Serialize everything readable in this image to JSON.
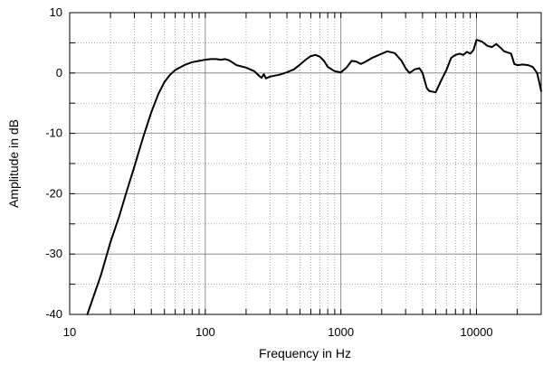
{
  "chart_data": {
    "type": "line",
    "title": "",
    "xlabel": "Frequency in Hz",
    "ylabel": "Amplitude in dB",
    "x_scale": "log",
    "xlim": [
      10,
      30000
    ],
    "ylim": [
      -40,
      10
    ],
    "x_tick_labels": [
      {
        "value": 10,
        "label": "10"
      },
      {
        "value": 100,
        "label": "100"
      },
      {
        "value": 1000,
        "label": "1000"
      },
      {
        "value": 10000,
        "label": "10000"
      }
    ],
    "y_tick_labels": [
      {
        "value": 10,
        "label": "10"
      },
      {
        "value": 0,
        "label": "0"
      },
      {
        "value": -10,
        "label": "-10"
      },
      {
        "value": -20,
        "label": "-20"
      },
      {
        "value": -30,
        "label": "-30"
      },
      {
        "value": -40,
        "label": "-40"
      }
    ],
    "grid": true,
    "legend": "none",
    "line_color": "#000000",
    "series": [
      {
        "x": [
          13.5,
          15,
          17,
          20,
          23,
          26,
          30,
          35,
          40,
          45,
          50,
          55,
          60,
          70,
          80,
          90,
          100,
          110,
          120,
          130,
          140,
          150,
          170,
          200,
          230,
          250,
          260,
          270,
          280,
          300,
          350,
          400,
          450,
          500,
          550,
          600,
          650,
          700,
          750,
          800,
          900,
          1000,
          1100,
          1200,
          1300,
          1400,
          1500,
          1700,
          2000,
          2200,
          2500,
          2800,
          3000,
          3200,
          3500,
          3800,
          4000,
          4300,
          4500,
          5000,
          5500,
          6000,
          6500,
          7000,
          7500,
          8000,
          8500,
          9000,
          9500,
          10000,
          11000,
          12000,
          13000,
          14000,
          15000,
          16000,
          17000,
          18000,
          19000,
          20000,
          22000,
          24000,
          26000,
          28000,
          29000,
          30000
        ],
        "y": [
          -40,
          -37,
          -33.5,
          -28,
          -24,
          -20,
          -15.5,
          -10.5,
          -6.5,
          -3.5,
          -1.5,
          -0.3,
          0.5,
          1.3,
          1.8,
          2.0,
          2.2,
          2.3,
          2.3,
          2.2,
          2.3,
          2.1,
          1.3,
          0.9,
          0.3,
          -0.5,
          -0.8,
          -0.2,
          -0.9,
          -0.6,
          -0.3,
          0.1,
          0.6,
          1.4,
          2.2,
          2.8,
          3.0,
          2.7,
          2.0,
          1.0,
          0.3,
          0.1,
          0.9,
          2.0,
          1.9,
          1.5,
          1.8,
          2.5,
          3.2,
          3.6,
          3.3,
          2.0,
          0.8,
          0.0,
          0.6,
          0.8,
          0.0,
          -2.5,
          -3.0,
          -3.2,
          -1.2,
          0.5,
          2.5,
          3.0,
          3.2,
          3.0,
          3.5,
          3.2,
          3.8,
          5.5,
          5.2,
          4.5,
          4.3,
          4.8,
          4.2,
          3.6,
          3.4,
          3.2,
          1.5,
          1.3,
          1.4,
          1.3,
          1.0,
          0.0,
          -1.5,
          -3.0
        ]
      }
    ]
  }
}
